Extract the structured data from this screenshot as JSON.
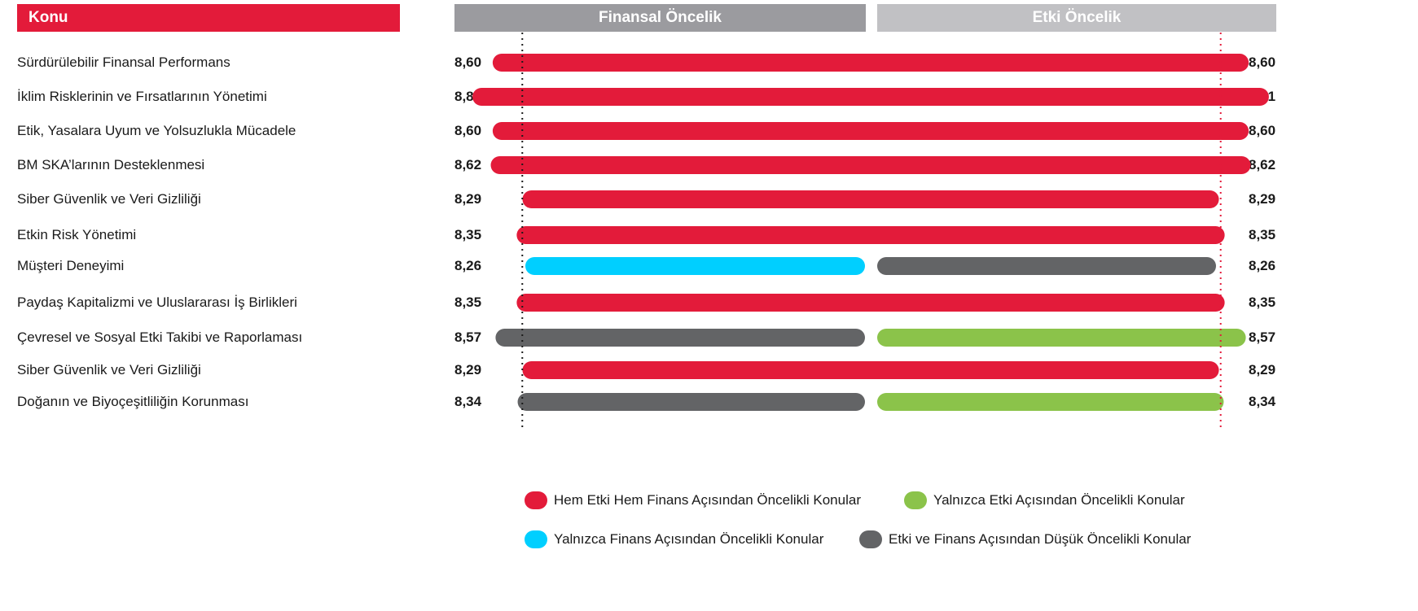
{
  "header": {
    "topic_label": "Konu",
    "financial_label": "Finansal Öncelik",
    "impact_label": "Etki Öncelik"
  },
  "colors": {
    "both": "#e31b3a",
    "finance_only": "#00cfff",
    "impact_only": "#8bc34a",
    "low": "#636466"
  },
  "chart_data": {
    "type": "bar",
    "columns": [
      "Finansal Öncelik",
      "Etki Öncelik"
    ],
    "categories": [
      "Sürdürülebilir Finansal Performans",
      "İklim Risklerinin ve Fırsatlarının Yönetimi",
      "Etik, Yasalara Uyum ve Yolsuzlukla Mücadele",
      "BM SKA’larının Desteklenmesi",
      "Siber Güvenlik ve Veri Gizliliği",
      "Etkin Risk Yönetimi",
      "Müşteri Deneyimi",
      "Paydaş Kapitalizmi ve Uluslararası İş Birlikleri",
      "Çevresel ve Sosyal Etki Takibi ve Raporlaması",
      "Siber Güvenlik ve Veri Gizliliği",
      "Doğanın ve Biyoçeşitliliğin Korunması"
    ],
    "financial_values": [
      "8,60",
      "8,81",
      "8,60",
      "8,62",
      "8,29",
      "8,35",
      "8,26",
      "8,35",
      "8,57",
      "8,29",
      "8,34"
    ],
    "impact_values": [
      "8,60",
      "8,81",
      "8,60",
      "8,62",
      "8,29",
      "8,35",
      "8,26",
      "8,35",
      "8,57",
      "8,29",
      "8,34"
    ],
    "numeric_values": [
      8.6,
      8.81,
      8.6,
      8.62,
      8.29,
      8.35,
      8.26,
      8.35,
      8.57,
      8.29,
      8.34
    ],
    "financial_category": [
      "both",
      "both",
      "both",
      "both",
      "both",
      "both",
      "finance_only",
      "both",
      "low",
      "both",
      "low"
    ],
    "impact_category": [
      "both",
      "both",
      "both",
      "both",
      "both",
      "both",
      "low",
      "both",
      "impact_only",
      "both",
      "impact_only"
    ],
    "threshold": 8.3,
    "legend": [
      {
        "key": "both",
        "label": "Hem Etki Hem Finans Açısından Öncelikli Konular"
      },
      {
        "key": "impact_only",
        "label": "Yalnızca Etki Açısından Öncelikli Konular"
      },
      {
        "key": "finance_only",
        "label": "Yalnızca Finans Açısından Öncelikli Konular"
      },
      {
        "key": "low",
        "label": "Etki ve Finans Açısından Düşük Öncelikli Konular"
      }
    ]
  }
}
